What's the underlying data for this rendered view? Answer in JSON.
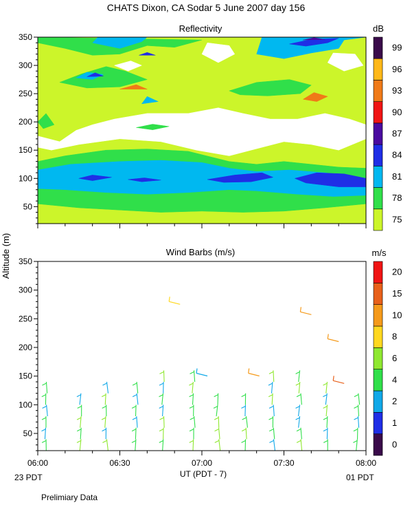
{
  "page": {
    "title": "CHATS Dixon, CA  Sodar    5 June 2007   day 156",
    "footer_note": "Prelimiary Data",
    "y_axis_label": "Altitude (m)",
    "x_axis_label": "UT  (PDT - 7)",
    "left_local_label": "23 PDT",
    "right_local_label": "01 PDT"
  },
  "chart_data": [
    {
      "type": "heatmap",
      "title": "Reflectivity",
      "colorbar_unit": "dB",
      "colorbar_ticks": [
        "75",
        "78",
        "81",
        "84",
        "87",
        "90",
        "93",
        "96",
        "99"
      ],
      "colorbar_colors": [
        "#ccf52a",
        "#30df4a",
        "#00b8f0",
        "#1f2ee6",
        "#4a0aa0",
        "#f01414",
        "#f07a18",
        "#ffb818",
        "#3a0a4a"
      ],
      "xlim": [
        "06:00",
        "08:00"
      ],
      "ylim": [
        20,
        350
      ],
      "y_ticks": [
        50,
        100,
        150,
        200,
        250,
        300,
        350
      ],
      "contour_bands": [
        {
          "level": "75",
          "description": "background lowest"
        },
        {
          "level": "78"
        },
        {
          "level": "81"
        },
        {
          "level": "84"
        }
      ]
    },
    {
      "type": "scatter",
      "title": "Wind Barbs (m/s)",
      "colorbar_unit": "m/s",
      "colorbar_ticks": [
        "0",
        "1",
        "2",
        "4",
        "6",
        "8",
        "10",
        "15",
        "20"
      ],
      "colorbar_colors": [
        "#3a0a4a",
        "#1f2ee6",
        "#10a8e8",
        "#30df4a",
        "#8fe830",
        "#ffd820",
        "#f59a1a",
        "#e8601a",
        "#f01414"
      ],
      "x_ticks": [
        "06:00",
        "06:30",
        "07:00",
        "07:30",
        "08:00"
      ],
      "ylim": [
        20,
        350
      ],
      "y_ticks": [
        50,
        100,
        150,
        200,
        250,
        300,
        350
      ],
      "columns_minutes": [
        3,
        16,
        25,
        36,
        46,
        57,
        66,
        76,
        86,
        96,
        106,
        117
      ],
      "column_top_altitude": [
        140,
        120,
        140,
        140,
        160,
        160,
        120,
        120,
        160,
        160,
        140,
        120
      ],
      "upper_barbs": [
        {
          "minute": 48,
          "altitude": 280,
          "speed": 8
        },
        {
          "minute": 96,
          "altitude": 262,
          "speed": 10
        },
        {
          "minute": 106,
          "altitude": 215,
          "speed": 10
        },
        {
          "minute": 77,
          "altitude": 155,
          "speed": 10
        },
        {
          "minute": 108,
          "altitude": 142,
          "speed": 15
        },
        {
          "minute": 58,
          "altitude": 155,
          "speed": 2
        }
      ]
    }
  ]
}
